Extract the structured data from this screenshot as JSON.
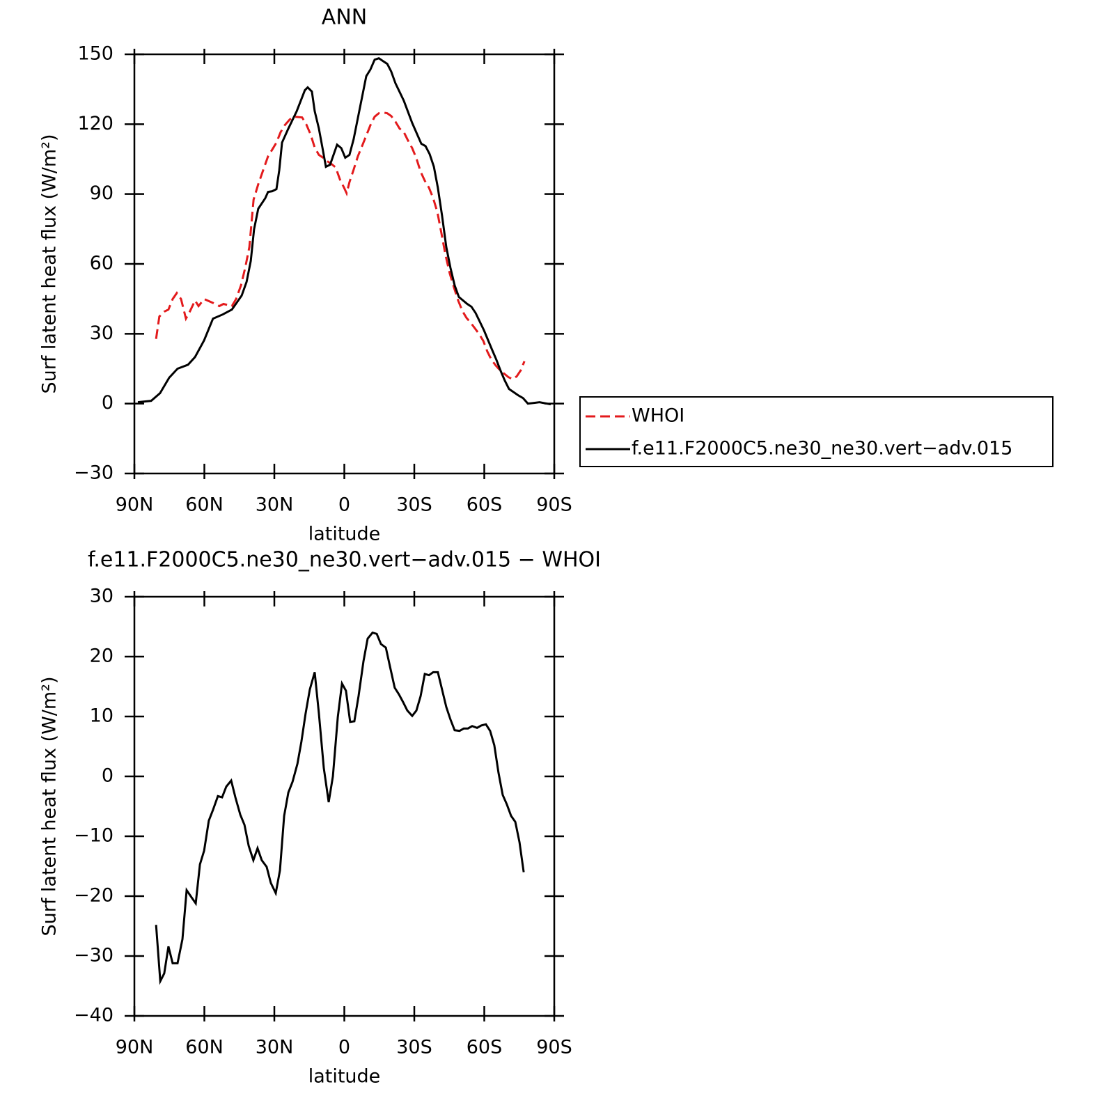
{
  "chart_data": [
    {
      "type": "line",
      "title": "ANN",
      "xlabel": "latitude",
      "ylabel": "Surf latent heat flux (W/m²)",
      "xlim": [
        90,
        -90
      ],
      "xticks": [
        {
          "value": 90,
          "label": "90N"
        },
        {
          "value": 60,
          "label": "60N"
        },
        {
          "value": 30,
          "label": "30N"
        },
        0,
        {
          "value": -30,
          "label": "30S"
        },
        {
          "value": -60,
          "label": "60S"
        },
        {
          "value": -90,
          "label": "90S"
        }
      ],
      "ylim": [
        -30,
        150
      ],
      "yticks": [
        {
          "value": -30,
          "label": "−30"
        },
        0,
        30,
        60,
        90,
        120,
        150
      ],
      "legend": "outside right",
      "series": [
        {
          "name": "WHOI",
          "color": "#e31a1c",
          "line_style": "dashed",
          "x": [
            80.7,
            79.3,
            77.2,
            75.4,
            73.6,
            71.8,
            70.0,
            67.9,
            66.1,
            64.0,
            62.5,
            60.1,
            56.0,
            53.6,
            51.8,
            48.2,
            46.4,
            44.3,
            42.5,
            40.7,
            38.9,
            36.9,
            34.8,
            32.7,
            30.9,
            29.1,
            27.3,
            25.5,
            23.4,
            21.6,
            18.1,
            16.3,
            14.5,
            12.7,
            10.9,
            9.1,
            7.3,
            5.5,
            3.7,
            1.9,
            0.1,
            -1.0,
            -2.2,
            -4.0,
            -5.8,
            -7.6,
            -9.4,
            -11.2,
            -13.0,
            -14.8,
            -16.6,
            -18.4,
            -20.1,
            -21.9,
            -23.7,
            -25.5,
            -27.3,
            -29.1,
            -30.9,
            -32.7,
            -34.5,
            -36.3,
            -38.1,
            -39.9,
            -41.6,
            -43.4,
            -45.2,
            -47.0,
            -48.8,
            -50.6,
            -52.4,
            -54.2,
            -56.0,
            -57.8,
            -59.6,
            -61.3,
            -63.1,
            -64.9,
            -66.7,
            -68.5,
            -70.3,
            -72.1,
            -73.9,
            -75.7,
            -77.2
          ],
          "values": [
            27.8,
            37.4,
            39.5,
            40.4,
            44.9,
            47.5,
            44.9,
            36.5,
            39.8,
            44.3,
            41.9,
            44.9,
            43.1,
            41.9,
            42.8,
            41.9,
            44.9,
            50.8,
            58.3,
            67.3,
            87.6,
            94.2,
            100.2,
            106.2,
            109.1,
            112.1,
            116.6,
            119.6,
            122.0,
            123.2,
            122.9,
            119.9,
            115.7,
            110.0,
            106.8,
            105.6,
            104.1,
            102.9,
            101.4,
            96.3,
            92.7,
            90.3,
            95.1,
            100.5,
            106.2,
            110.6,
            115.1,
            119.6,
            123.2,
            124.7,
            125.0,
            124.7,
            123.5,
            121.1,
            118.1,
            116.6,
            113.0,
            109.7,
            105.3,
            99.6,
            95.7,
            92.7,
            88.2,
            82.2,
            73.3,
            63.7,
            55.9,
            49.9,
            44.3,
            39.8,
            36.8,
            34.7,
            32.3,
            29.9,
            26.9,
            22.4,
            18.8,
            16.4,
            14.4,
            12.9,
            11.4,
            10.5,
            11.7,
            14.4,
            18.2
          ]
        },
        {
          "name": "f.e11.F2000C5.ne30_ne30.vert−adv.015",
          "color": "#000000",
          "line_style": "solid",
          "x": [
            88.5,
            82.8,
            79.0,
            75.1,
            71.5,
            67.0,
            64.0,
            60.1,
            56.3,
            52.1,
            48.2,
            44.0,
            41.9,
            40.1,
            38.7,
            36.9,
            33.9,
            32.7,
            30.9,
            29.1,
            27.9,
            26.7,
            24.0,
            20.4,
            16.9,
            15.7,
            13.9,
            12.7,
            10.9,
            9.4,
            7.9,
            6.1,
            3.1,
            1.3,
            -0.4,
            -2.2,
            -4.0,
            -5.8,
            -7.6,
            -9.4,
            -11.2,
            -13.0,
            -14.8,
            -16.6,
            -18.4,
            -20.1,
            -21.9,
            -25.5,
            -29.1,
            -33.0,
            -34.8,
            -36.6,
            -38.4,
            -40.1,
            -41.9,
            -43.7,
            -45.5,
            -47.3,
            -49.1,
            -52.7,
            -54.5,
            -56.3,
            -59.9,
            -63.4,
            -65.2,
            -67.0,
            -68.8,
            -70.6,
            -74.5,
            -76.6,
            -78.7,
            -83.7,
            -88.5
          ],
          "values": [
            0.6,
            1.2,
            4.5,
            11.1,
            15.0,
            16.7,
            20.0,
            27.2,
            36.5,
            38.3,
            40.4,
            46.4,
            52.3,
            61.3,
            74.8,
            83.7,
            88.2,
            90.9,
            91.2,
            92.1,
            100.2,
            112.1,
            118.1,
            125.6,
            134.6,
            135.8,
            134.0,
            125.6,
            118.1,
            110.0,
            101.7,
            102.6,
            111.2,
            109.7,
            105.6,
            106.8,
            113.6,
            122.6,
            131.6,
            140.6,
            143.5,
            147.7,
            148.3,
            147.1,
            145.9,
            142.6,
            137.6,
            130.1,
            120.5,
            111.6,
            110.6,
            107.1,
            101.7,
            92.7,
            80.7,
            67.3,
            58.3,
            50.8,
            45.8,
            42.8,
            41.6,
            38.9,
            31.4,
            23.0,
            18.8,
            14.1,
            9.9,
            6.3,
            3.6,
            2.4,
            0,
            0.6,
            -0.3
          ]
        }
      ]
    },
    {
      "type": "line",
      "title": "f.e11.F2000C5.ne30_ne30.vert−adv.015 − WHOI",
      "xlabel": "latitude",
      "ylabel": "Surf latent heat flux (W/m²)",
      "xlim": [
        90,
        -90
      ],
      "xticks": [
        {
          "value": 90,
          "label": "90N"
        },
        {
          "value": 60,
          "label": "60N"
        },
        {
          "value": 30,
          "label": "30N"
        },
        0,
        {
          "value": -30,
          "label": "30S"
        },
        {
          "value": -60,
          "label": "60S"
        },
        {
          "value": -90,
          "label": "90S"
        }
      ],
      "ylim": [
        -40,
        30
      ],
      "yticks": [
        {
          "value": -40,
          "label": "−40"
        },
        {
          "value": -30,
          "label": "−30"
        },
        {
          "value": -20,
          "label": "−20"
        },
        {
          "value": -10,
          "label": "−10"
        },
        0,
        10,
        20,
        30
      ],
      "series": [
        {
          "color": "#000000",
          "line_style": "solid",
          "x": [
            80.7,
            78.9,
            77.2,
            75.4,
            73.6,
            71.5,
            69.4,
            67.6,
            65.5,
            63.7,
            61.9,
            60.1,
            58.1,
            56.3,
            54.2,
            52.4,
            50.6,
            48.5,
            46.7,
            44.6,
            42.8,
            41.0,
            39.0,
            37.2,
            35.4,
            33.3,
            31.5,
            29.4,
            27.6,
            25.8,
            24.0,
            22.2,
            20.1,
            18.4,
            16.6,
            14.8,
            12.7,
            10.9,
            8.8,
            6.7,
            4.9,
            2.8,
            1.0,
            -0.7,
            -2.5,
            -4.3,
            -6.1,
            -8.2,
            -10.0,
            -12.1,
            -13.9,
            -15.7,
            -17.8,
            -19.6,
            -21.6,
            -23.4,
            -25.2,
            -27.0,
            -29.1,
            -30.9,
            -32.7,
            -34.5,
            -36.3,
            -38.1,
            -40.1,
            -41.9,
            -43.7,
            -45.5,
            -47.3,
            -49.4,
            -51.2,
            -53.0,
            -54.8,
            -56.9,
            -58.7,
            -60.7,
            -62.5,
            -64.3,
            -66.1,
            -67.9,
            -69.7,
            -71.5,
            -73.3,
            -75.1,
            -76.9
          ],
          "values": [
            -24.8,
            -34.2,
            -32.9,
            -28.4,
            -31.2,
            -31.2,
            -27.2,
            -19.0,
            -20.2,
            -21.2,
            -14.7,
            -12.4,
            -7.4,
            -5.6,
            -3.3,
            -3.5,
            -1.7,
            -0.7,
            -3.5,
            -6.4,
            -8.1,
            -11.6,
            -14.0,
            -12.0,
            -14.0,
            -15.1,
            -17.8,
            -19.5,
            -15.7,
            -6.6,
            -2.7,
            -0.9,
            2.1,
            5.8,
            10.5,
            14.5,
            17.4,
            10.5,
            1.4,
            -4.3,
            0,
            9.9,
            15.5,
            14.3,
            9.1,
            9.2,
            13.4,
            19.2,
            23.0,
            24.0,
            23.8,
            22.1,
            21.5,
            18.3,
            14.8,
            13.7,
            12.4,
            11.0,
            10.1,
            11.0,
            13.4,
            17.1,
            16.9,
            17.4,
            17.4,
            14.5,
            11.6,
            9.5,
            7.7,
            7.6,
            8.0,
            8.0,
            8.4,
            8.1,
            8.5,
            8.7,
            7.6,
            5.2,
            0.6,
            -3.1,
            -4.7,
            -6.6,
            -7.6,
            -11.0,
            -16.0
          ]
        }
      ]
    }
  ]
}
